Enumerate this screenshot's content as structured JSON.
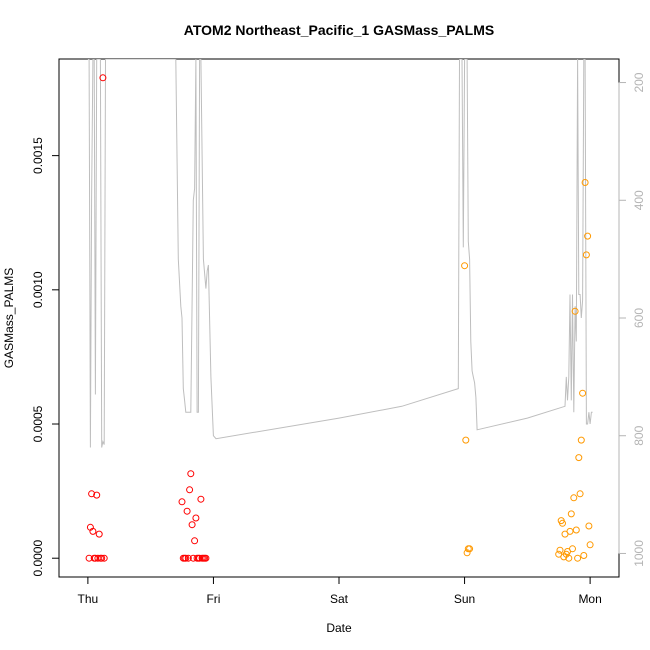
{
  "chart_data": {
    "type": "scatter",
    "title": "ATOM2 Northeast_Pacific_1 GASMass_PALMS",
    "xlabel": "Date",
    "ylabel": "GASMass_PALMS",
    "x_ticks": [
      {
        "label": "Thu",
        "value": 0
      },
      {
        "label": "Fri",
        "value": 1
      },
      {
        "label": "Sat",
        "value": 2
      },
      {
        "label": "Sun",
        "value": 3
      },
      {
        "label": "Mon",
        "value": 4
      }
    ],
    "xlim": [
      -0.23,
      4.23
    ],
    "y_ticks": [
      0.0,
      0.0005,
      0.001,
      0.0015
    ],
    "y_tick_labels": [
      "0.0000",
      "0.0005",
      "0.0010",
      "0.0015"
    ],
    "ylim": [
      -7e-05,
      0.00186
    ],
    "y2_ticks": [
      200,
      400,
      600,
      800,
      1000
    ],
    "y2_tick_labels": [
      "200",
      "400",
      "600",
      "800",
      "1000"
    ],
    "y2_lim": [
      1040,
      160
    ],
    "y2_reversed": true,
    "colors": {
      "red": "#ff0000",
      "orange": "#ff9900",
      "pressure_line": "#bebebe"
    },
    "series": [
      {
        "color": "#ff0000",
        "x": [
          0.01,
          0.02,
          0.03,
          0.04,
          0.05,
          0.06,
          0.07,
          0.08,
          0.09,
          0.1,
          0.11,
          0.12,
          0.13,
          0.75,
          0.76,
          0.77,
          0.78,
          0.79,
          0.8,
          0.81,
          0.82,
          0.83,
          0.84,
          0.85,
          0.86,
          0.87,
          0.88,
          0.89,
          0.9,
          0.91,
          0.92,
          0.93,
          0.94
        ],
        "y": [
          0.0,
          0.000115,
          0.00024,
          0.0001,
          0.0,
          0.0,
          0.000235,
          0.0,
          9e-05,
          0.0,
          0.0,
          0.00179,
          0.0,
          0.00021,
          0.0,
          0.0,
          0.0,
          0.000175,
          0.0,
          0.000255,
          0.000315,
          0.000125,
          0.0,
          6.5e-05,
          0.00015,
          0.0,
          0.0,
          0.0,
          0.00022,
          0.0,
          0.0,
          0.0,
          0.0
        ]
      },
      {
        "color": "#ff9900",
        "x": [
          3.0,
          3.01,
          3.02,
          3.03,
          3.04,
          3.75,
          3.76,
          3.77,
          3.78,
          3.79,
          3.8,
          3.81,
          3.82,
          3.83,
          3.84,
          3.85,
          3.86,
          3.87,
          3.88,
          3.89,
          3.9,
          3.91,
          3.92,
          3.93,
          3.94,
          3.95,
          3.96,
          3.97,
          3.98,
          3.99,
          4.0
        ],
        "y": [
          0.00109,
          0.00044,
          2e-05,
          3.5e-05,
          3.5e-05,
          1.5e-05,
          3e-05,
          0.00014,
          0.00013,
          5e-06,
          9e-05,
          1.5e-05,
          2.5e-05,
          0.0,
          0.0001,
          0.000165,
          3.5e-05,
          0.000225,
          0.00092,
          0.000105,
          0.0,
          0.000375,
          0.00024,
          0.00044,
          0.000615,
          1e-05,
          0.0014,
          0.00113,
          0.0012,
          0.00012,
          5e-05
        ]
      }
    ],
    "pressure_line": {
      "axis": "right",
      "x": [
        0.0,
        0.01,
        0.02,
        0.03,
        0.04,
        0.05,
        0.06,
        0.07,
        0.08,
        0.09,
        0.1,
        0.11,
        0.12,
        0.13,
        0.14,
        0.6,
        0.7,
        0.72,
        0.74,
        0.75,
        0.76,
        0.77,
        0.78,
        0.8,
        0.82,
        0.84,
        0.85,
        0.86,
        0.87,
        0.88,
        0.89,
        0.9,
        0.92,
        0.94,
        0.95,
        0.96,
        0.98,
        1.0,
        1.02,
        2.0,
        2.5,
        2.95,
        2.96,
        2.97,
        2.98,
        2.99,
        3.0,
        3.01,
        3.02,
        3.03,
        3.04,
        3.05,
        3.06,
        3.07,
        3.08,
        3.09,
        3.1,
        3.5,
        3.8,
        3.81,
        3.82,
        3.83,
        3.84,
        3.85,
        3.86,
        3.87,
        3.88,
        3.89,
        3.9,
        3.91,
        3.92,
        3.93,
        3.94,
        3.95,
        3.96,
        3.97,
        3.98,
        3.99,
        4.0,
        4.01,
        4.02
      ],
      "y": [
        160,
        160,
        820,
        400,
        160,
        160,
        730,
        160,
        160,
        160,
        160,
        820,
        810,
        815,
        160,
        160,
        160,
        500,
        580,
        600,
        720,
        740,
        760,
        760,
        760,
        400,
        380,
        160,
        760,
        760,
        160,
        160,
        500,
        550,
        520,
        510,
        700,
        800,
        805,
        770,
        750,
        720,
        160,
        160,
        160,
        480,
        160,
        160,
        160,
        470,
        500,
        640,
        690,
        700,
        710,
        735,
        790,
        770,
        750,
        700,
        740,
        700,
        560,
        740,
        560,
        760,
        580,
        640,
        160,
        560,
        560,
        600,
        570,
        160,
        160,
        780,
        780,
        760,
        780,
        760,
        760
      ]
    }
  }
}
